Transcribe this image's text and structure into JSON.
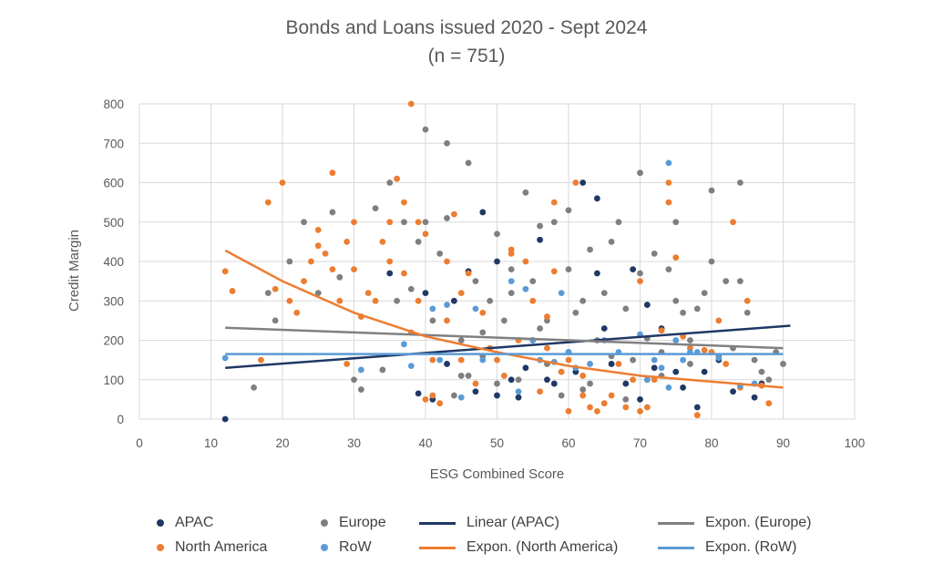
{
  "title_line1": "Bonds and Loans issued 2020 - Sept 2024",
  "title_line2": "(n = 751)",
  "chart_data": {
    "type": "scatter",
    "xlabel": "ESG Combined Score",
    "ylabel": "Credit Margin",
    "xlim": [
      0,
      100
    ],
    "ylim": [
      0,
      800
    ],
    "x_ticks": [
      0,
      10,
      20,
      30,
      40,
      50,
      60,
      70,
      80,
      90,
      100
    ],
    "y_ticks": [
      0,
      100,
      200,
      300,
      400,
      500,
      600,
      700,
      800
    ],
    "grid": true,
    "legend_position": "bottom",
    "colors": {
      "APAC": "#1F3864",
      "Europe": "#7F7F7F",
      "North America": "#ED7D31",
      "RoW": "#5B9BD5"
    },
    "series": [
      {
        "name": "APAC",
        "color": "#1F3864",
        "points": [
          [
            12,
            0
          ],
          [
            35,
            370
          ],
          [
            39,
            65
          ],
          [
            40,
            320
          ],
          [
            41,
            50
          ],
          [
            44,
            300
          ],
          [
            46,
            375
          ],
          [
            48,
            525
          ],
          [
            50,
            400
          ],
          [
            50,
            60
          ],
          [
            52,
            100
          ],
          [
            53,
            55
          ],
          [
            54,
            130
          ],
          [
            56,
            455
          ],
          [
            57,
            100
          ],
          [
            58,
            90
          ],
          [
            60,
            170
          ],
          [
            61,
            120
          ],
          [
            62,
            600
          ],
          [
            64,
            560
          ],
          [
            64,
            370
          ],
          [
            66,
            140
          ],
          [
            68,
            90
          ],
          [
            69,
            380
          ],
          [
            70,
            50
          ],
          [
            71,
            290
          ],
          [
            72,
            130
          ],
          [
            73,
            230
          ],
          [
            75,
            120
          ],
          [
            76,
            80
          ],
          [
            78,
            30
          ],
          [
            79,
            120
          ],
          [
            81,
            150
          ],
          [
            83,
            70
          ],
          [
            86,
            55
          ],
          [
            87,
            90
          ],
          [
            43,
            140
          ],
          [
            47,
            70
          ],
          [
            55,
            200
          ],
          [
            65,
            230
          ]
        ]
      },
      {
        "name": "Europe",
        "color": "#7F7F7F",
        "points": [
          [
            16,
            80
          ],
          [
            18,
            320
          ],
          [
            19,
            250
          ],
          [
            21,
            400
          ],
          [
            23,
            500
          ],
          [
            25,
            320
          ],
          [
            27,
            525
          ],
          [
            28,
            360
          ],
          [
            30,
            100
          ],
          [
            31,
            75
          ],
          [
            33,
            535
          ],
          [
            34,
            125
          ],
          [
            35,
            600
          ],
          [
            36,
            300
          ],
          [
            37,
            500
          ],
          [
            38,
            330
          ],
          [
            39,
            450
          ],
          [
            40,
            735
          ],
          [
            40,
            500
          ],
          [
            41,
            250
          ],
          [
            42,
            420
          ],
          [
            43,
            700
          ],
          [
            43,
            510
          ],
          [
            44,
            60
          ],
          [
            45,
            200
          ],
          [
            46,
            650
          ],
          [
            46,
            110
          ],
          [
            47,
            350
          ],
          [
            48,
            220
          ],
          [
            49,
            300
          ],
          [
            50,
            470
          ],
          [
            50,
            90
          ],
          [
            51,
            250
          ],
          [
            52,
            320
          ],
          [
            53,
            100
          ],
          [
            54,
            575
          ],
          [
            55,
            350
          ],
          [
            56,
            490
          ],
          [
            57,
            250
          ],
          [
            58,
            500
          ],
          [
            59,
            120
          ],
          [
            60,
            530
          ],
          [
            60,
            380
          ],
          [
            61,
            270
          ],
          [
            62,
            75
          ],
          [
            63,
            430
          ],
          [
            64,
            200
          ],
          [
            65,
            320
          ],
          [
            66,
            160
          ],
          [
            67,
            500
          ],
          [
            68,
            280
          ],
          [
            69,
            150
          ],
          [
            70,
            625
          ],
          [
            70,
            370
          ],
          [
            71,
            100
          ],
          [
            72,
            420
          ],
          [
            73,
            170
          ],
          [
            74,
            380
          ],
          [
            75,
            300
          ],
          [
            75,
            500
          ],
          [
            76,
            270
          ],
          [
            77,
            200
          ],
          [
            78,
            280
          ],
          [
            79,
            320
          ],
          [
            80,
            580
          ],
          [
            80,
            400
          ],
          [
            81,
            160
          ],
          [
            82,
            350
          ],
          [
            83,
            180
          ],
          [
            84,
            600
          ],
          [
            84,
            350
          ],
          [
            85,
            270
          ],
          [
            86,
            150
          ],
          [
            87,
            120
          ],
          [
            88,
            100
          ],
          [
            89,
            170
          ],
          [
            90,
            140
          ],
          [
            52,
            380
          ],
          [
            57,
            140
          ],
          [
            63,
            90
          ],
          [
            66,
            450
          ],
          [
            73,
            110
          ],
          [
            77,
            140
          ],
          [
            45,
            110
          ],
          [
            48,
            160
          ],
          [
            56,
            230
          ],
          [
            59,
            60
          ],
          [
            62,
            300
          ],
          [
            68,
            50
          ],
          [
            71,
            205
          ]
        ]
      },
      {
        "name": "North America",
        "color": "#ED7D31",
        "points": [
          [
            12,
            375
          ],
          [
            13,
            325
          ],
          [
            17,
            150
          ],
          [
            18,
            550
          ],
          [
            19,
            330
          ],
          [
            20,
            600
          ],
          [
            21,
            300
          ],
          [
            22,
            270
          ],
          [
            23,
            350
          ],
          [
            24,
            400
          ],
          [
            25,
            480
          ],
          [
            25,
            440
          ],
          [
            26,
            420
          ],
          [
            27,
            625
          ],
          [
            27,
            380
          ],
          [
            28,
            300
          ],
          [
            29,
            450
          ],
          [
            29,
            140
          ],
          [
            30,
            500
          ],
          [
            30,
            380
          ],
          [
            31,
            260
          ],
          [
            32,
            320
          ],
          [
            33,
            300
          ],
          [
            34,
            450
          ],
          [
            35,
            500
          ],
          [
            35,
            400
          ],
          [
            36,
            610
          ],
          [
            37,
            550
          ],
          [
            37,
            370
          ],
          [
            38,
            800
          ],
          [
            38,
            220
          ],
          [
            39,
            500
          ],
          [
            39,
            300
          ],
          [
            40,
            470
          ],
          [
            40,
            50
          ],
          [
            41,
            150
          ],
          [
            41,
            60
          ],
          [
            42,
            40
          ],
          [
            43,
            400
          ],
          [
            43,
            250
          ],
          [
            44,
            520
          ],
          [
            45,
            320
          ],
          [
            45,
            150
          ],
          [
            46,
            370
          ],
          [
            47,
            90
          ],
          [
            48,
            270
          ],
          [
            49,
            180
          ],
          [
            50,
            150
          ],
          [
            51,
            110
          ],
          [
            52,
            420
          ],
          [
            52,
            430
          ],
          [
            53,
            200
          ],
          [
            54,
            400
          ],
          [
            55,
            300
          ],
          [
            56,
            70
          ],
          [
            57,
            260
          ],
          [
            57,
            180
          ],
          [
            58,
            550
          ],
          [
            58,
            375
          ],
          [
            59,
            120
          ],
          [
            60,
            20
          ],
          [
            60,
            150
          ],
          [
            61,
            600
          ],
          [
            62,
            110
          ],
          [
            62,
            60
          ],
          [
            63,
            30
          ],
          [
            64,
            20
          ],
          [
            65,
            40
          ],
          [
            66,
            60
          ],
          [
            67,
            140
          ],
          [
            68,
            30
          ],
          [
            69,
            100
          ],
          [
            70,
            20
          ],
          [
            70,
            350
          ],
          [
            71,
            30
          ],
          [
            72,
            100
          ],
          [
            73,
            225
          ],
          [
            74,
            600
          ],
          [
            74,
            550
          ],
          [
            75,
            410
          ],
          [
            76,
            210
          ],
          [
            77,
            180
          ],
          [
            78,
            10
          ],
          [
            79,
            175
          ],
          [
            80,
            170
          ],
          [
            81,
            250
          ],
          [
            82,
            140
          ],
          [
            83,
            500
          ],
          [
            84,
            80
          ],
          [
            85,
            300
          ],
          [
            87,
            85
          ],
          [
            88,
            40
          ]
        ]
      },
      {
        "name": "RoW",
        "color": "#5B9BD5",
        "points": [
          [
            12,
            155
          ],
          [
            31,
            125
          ],
          [
            37,
            190
          ],
          [
            38,
            135
          ],
          [
            41,
            280
          ],
          [
            42,
            150
          ],
          [
            43,
            290
          ],
          [
            45,
            55
          ],
          [
            47,
            280
          ],
          [
            48,
            150
          ],
          [
            52,
            350
          ],
          [
            53,
            70
          ],
          [
            54,
            330
          ],
          [
            55,
            200
          ],
          [
            56,
            150
          ],
          [
            58,
            145
          ],
          [
            59,
            320
          ],
          [
            60,
            170
          ],
          [
            61,
            130
          ],
          [
            63,
            140
          ],
          [
            65,
            200
          ],
          [
            67,
            170
          ],
          [
            70,
            215
          ],
          [
            71,
            100
          ],
          [
            72,
            150
          ],
          [
            73,
            130
          ],
          [
            74,
            80
          ],
          [
            74,
            650
          ],
          [
            75,
            200
          ],
          [
            76,
            150
          ],
          [
            77,
            170
          ],
          [
            78,
            170
          ],
          [
            81,
            155
          ],
          [
            84,
            85
          ],
          [
            86,
            90
          ]
        ]
      },
      {
        "name": "Linear (APAC)",
        "color": "#1F3864",
        "type": "trendline",
        "points": [
          [
            12,
            130
          ],
          [
            91,
            237
          ]
        ]
      },
      {
        "name": "Expon. (Europe)",
        "color": "#808080",
        "type": "trendline",
        "points": [
          [
            12,
            232
          ],
          [
            90,
            180
          ]
        ]
      },
      {
        "name": "Expon. (North America)",
        "color": "#ED7D31",
        "type": "trendline",
        "points": [
          [
            12,
            428
          ],
          [
            20,
            350
          ],
          [
            30,
            270
          ],
          [
            40,
            210
          ],
          [
            50,
            170
          ],
          [
            60,
            135
          ],
          [
            70,
            110
          ],
          [
            80,
            95
          ],
          [
            90,
            80
          ]
        ]
      },
      {
        "name": "Expon. (RoW)",
        "color": "#5B9BD5",
        "type": "trendline",
        "points": [
          [
            12,
            165
          ],
          [
            90,
            165
          ]
        ]
      }
    ],
    "legend": [
      {
        "label": "APAC",
        "kind": "dot",
        "color": "#1F3864"
      },
      {
        "label": "Europe",
        "kind": "dot",
        "color": "#7F7F7F"
      },
      {
        "label": "Linear (APAC)",
        "kind": "line",
        "color": "#1F3864"
      },
      {
        "label": "Expon. (Europe)",
        "kind": "line",
        "color": "#808080"
      },
      {
        "label": "North America",
        "kind": "dot",
        "color": "#ED7D31"
      },
      {
        "label": "RoW",
        "kind": "dot",
        "color": "#5B9BD5"
      },
      {
        "label": "Expon. (North America)",
        "kind": "line",
        "color": "#ED7D31"
      },
      {
        "label": "Expon. (RoW)",
        "kind": "line",
        "color": "#5B9BD5"
      }
    ]
  }
}
